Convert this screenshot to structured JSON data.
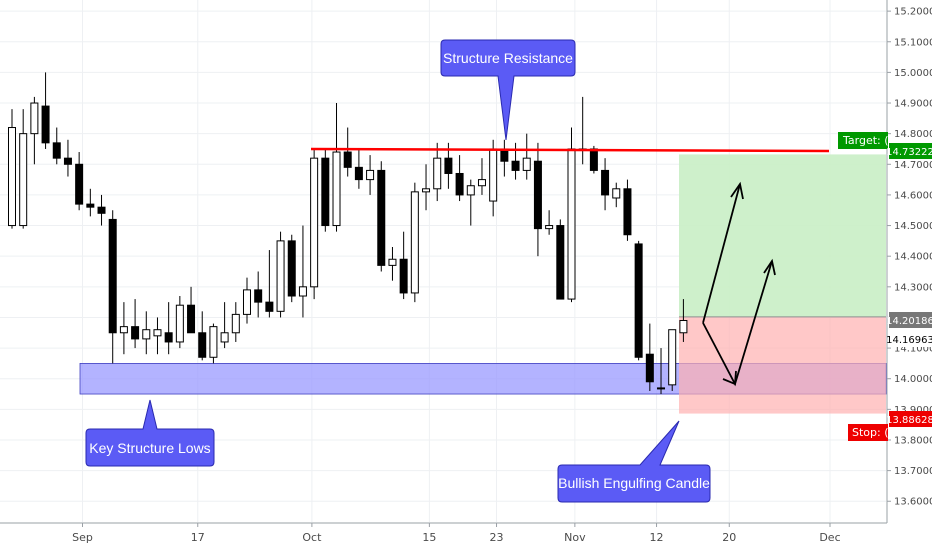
{
  "chart_data": {
    "type": "candlestick",
    "title": "",
    "xlabel": "",
    "ylabel": "",
    "ylim": [
      13.56,
      15.22
    ],
    "y_ticks": [
      "15.20000",
      "15.10000",
      "15.00000",
      "14.90000",
      "14.80000",
      "14.70000",
      "14.60000",
      "14.50000",
      "14.40000",
      "14.30000",
      "14.20000",
      "14.10000",
      "14.00000",
      "13.90000",
      "13.80000",
      "13.70000",
      "13.60000"
    ],
    "x_ticks": [
      "Sep",
      "17",
      "Oct",
      "15",
      "23",
      "Nov",
      "12",
      "20",
      "Dec"
    ],
    "grid": true,
    "candles": [
      {
        "o": 14.5,
        "h": 14.88,
        "l": 14.49,
        "c": 14.82
      },
      {
        "o": 14.5,
        "h": 14.88,
        "l": 14.49,
        "c": 14.8
      },
      {
        "o": 14.8,
        "h": 14.92,
        "l": 14.7,
        "c": 14.9
      },
      {
        "o": 14.89,
        "h": 15.0,
        "l": 14.75,
        "c": 14.77
      },
      {
        "o": 14.77,
        "h": 14.82,
        "l": 14.7,
        "c": 14.72
      },
      {
        "o": 14.72,
        "h": 14.78,
        "l": 14.66,
        "c": 14.7
      },
      {
        "o": 14.7,
        "h": 14.74,
        "l": 14.55,
        "c": 14.57
      },
      {
        "o": 14.57,
        "h": 14.62,
        "l": 14.53,
        "c": 14.56
      },
      {
        "o": 14.56,
        "h": 14.6,
        "l": 14.5,
        "c": 14.54
      },
      {
        "o": 14.52,
        "h": 14.55,
        "l": 14.05,
        "c": 14.15
      },
      {
        "o": 14.15,
        "h": 14.25,
        "l": 14.08,
        "c": 14.17
      },
      {
        "o": 14.17,
        "h": 14.26,
        "l": 14.1,
        "c": 14.13
      },
      {
        "o": 14.13,
        "h": 14.22,
        "l": 14.08,
        "c": 14.16
      },
      {
        "o": 14.14,
        "h": 14.2,
        "l": 14.08,
        "c": 14.16
      },
      {
        "o": 14.15,
        "h": 14.25,
        "l": 14.08,
        "c": 14.12
      },
      {
        "o": 14.12,
        "h": 14.27,
        "l": 14.1,
        "c": 14.24
      },
      {
        "o": 14.24,
        "h": 14.3,
        "l": 14.15,
        "c": 14.15
      },
      {
        "o": 14.15,
        "h": 14.22,
        "l": 14.06,
        "c": 14.07
      },
      {
        "o": 14.07,
        "h": 14.18,
        "l": 14.05,
        "c": 14.17
      },
      {
        "o": 14.12,
        "h": 14.25,
        "l": 14.1,
        "c": 14.15
      },
      {
        "o": 14.15,
        "h": 14.25,
        "l": 14.12,
        "c": 14.21
      },
      {
        "o": 14.21,
        "h": 14.33,
        "l": 14.18,
        "c": 14.29
      },
      {
        "o": 14.29,
        "h": 14.35,
        "l": 14.2,
        "c": 14.25
      },
      {
        "o": 14.25,
        "h": 14.42,
        "l": 14.2,
        "c": 14.22
      },
      {
        "o": 14.22,
        "h": 14.48,
        "l": 14.2,
        "c": 14.45
      },
      {
        "o": 14.45,
        "h": 14.47,
        "l": 14.25,
        "c": 14.27
      },
      {
        "o": 14.27,
        "h": 14.5,
        "l": 14.2,
        "c": 14.3
      },
      {
        "o": 14.3,
        "h": 14.75,
        "l": 14.26,
        "c": 14.72
      },
      {
        "o": 14.72,
        "h": 14.75,
        "l": 14.48,
        "c": 14.5
      },
      {
        "o": 14.5,
        "h": 14.9,
        "l": 14.48,
        "c": 14.74
      },
      {
        "o": 14.74,
        "h": 14.82,
        "l": 14.66,
        "c": 14.69
      },
      {
        "o": 14.69,
        "h": 14.75,
        "l": 14.62,
        "c": 14.65
      },
      {
        "o": 14.65,
        "h": 14.73,
        "l": 14.6,
        "c": 14.68
      },
      {
        "o": 14.68,
        "h": 14.71,
        "l": 14.35,
        "c": 14.37
      },
      {
        "o": 14.37,
        "h": 14.43,
        "l": 14.32,
        "c": 14.39
      },
      {
        "o": 14.39,
        "h": 14.48,
        "l": 14.26,
        "c": 14.28
      },
      {
        "o": 14.28,
        "h": 14.64,
        "l": 14.25,
        "c": 14.61
      },
      {
        "o": 14.61,
        "h": 14.7,
        "l": 14.55,
        "c": 14.62
      },
      {
        "o": 14.62,
        "h": 14.77,
        "l": 14.58,
        "c": 14.72
      },
      {
        "o": 14.72,
        "h": 14.77,
        "l": 14.62,
        "c": 14.67
      },
      {
        "o": 14.67,
        "h": 14.73,
        "l": 14.58,
        "c": 14.6
      },
      {
        "o": 14.6,
        "h": 14.65,
        "l": 14.5,
        "c": 14.63
      },
      {
        "o": 14.63,
        "h": 14.72,
        "l": 14.6,
        "c": 14.65
      },
      {
        "o": 14.58,
        "h": 14.78,
        "l": 14.53,
        "c": 14.75
      },
      {
        "o": 14.75,
        "h": 14.78,
        "l": 14.66,
        "c": 14.71
      },
      {
        "o": 14.71,
        "h": 14.77,
        "l": 14.65,
        "c": 14.68
      },
      {
        "o": 14.68,
        "h": 14.8,
        "l": 14.65,
        "c": 14.72
      },
      {
        "o": 14.71,
        "h": 14.77,
        "l": 14.4,
        "c": 14.49
      },
      {
        "o": 14.49,
        "h": 14.55,
        "l": 14.47,
        "c": 14.5
      },
      {
        "o": 14.5,
        "h": 14.52,
        "l": 14.26,
        "c": 14.26
      },
      {
        "o": 14.26,
        "h": 14.82,
        "l": 14.25,
        "c": 14.75
      },
      {
        "o": 14.75,
        "h": 14.92,
        "l": 14.7,
        "c": 14.75
      },
      {
        "o": 14.75,
        "h": 14.76,
        "l": 14.67,
        "c": 14.68
      },
      {
        "o": 14.68,
        "h": 14.72,
        "l": 14.55,
        "c": 14.6
      },
      {
        "o": 14.59,
        "h": 14.64,
        "l": 14.56,
        "c": 14.62
      },
      {
        "o": 14.62,
        "h": 14.65,
        "l": 14.45,
        "c": 14.47
      },
      {
        "o": 14.44,
        "h": 14.45,
        "l": 14.06,
        "c": 14.07
      },
      {
        "o": 14.08,
        "h": 14.18,
        "l": 13.96,
        "c": 13.99
      },
      {
        "o": 13.97,
        "h": 14.1,
        "l": 13.95,
        "c": 13.97
      },
      {
        "o": 13.98,
        "h": 14.16,
        "l": 13.96,
        "c": 14.16
      },
      {
        "o": 14.15,
        "h": 14.26,
        "l": 14.12,
        "c": 14.19
      }
    ],
    "zones": {
      "support_low": 13.95,
      "support_high": 14.05,
      "resistance": 14.75,
      "target": 14.73222,
      "entry": 14.20186,
      "stop": 13.88628,
      "current": 14.16963
    }
  },
  "callouts": {
    "resistance_label": "Structure Resistance",
    "lows_label": "Key Structure Lows",
    "engulfing_label": "Bullish Engulfing Candle"
  },
  "tags": {
    "target_label": "Target: (",
    "target_value": "14.73222",
    "entry_value": "14.20186",
    "current_value": "14.16963",
    "stop_label": "Stop: (",
    "stop_value": "13.88628"
  },
  "colors": {
    "bull_candle": "#ffffff",
    "bear_candle": "#000000",
    "resistance_line": "#ff0000",
    "support_zone": "#9999ff",
    "target_zone": "#c9eec5",
    "stop_zone": "#ffc4c4",
    "callout_bg": "#5b5bf5",
    "target_tag": "#009900",
    "stop_tag": "#ee0000",
    "entry_tag": "#777777"
  }
}
